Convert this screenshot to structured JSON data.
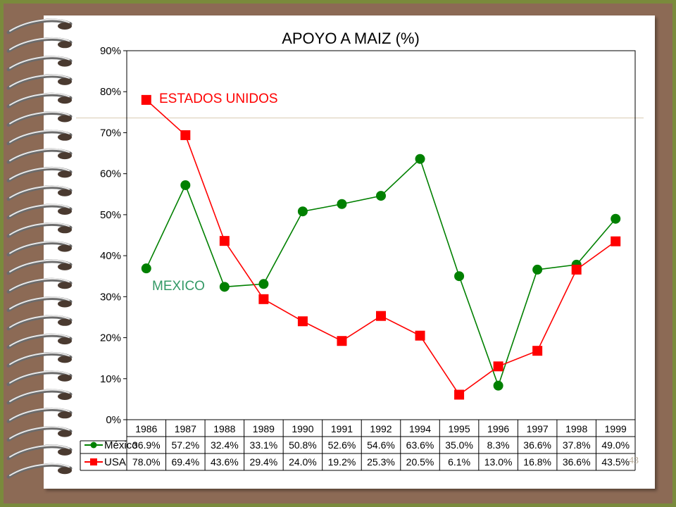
{
  "slide_number": "43",
  "colors": {
    "mexico": "#008000",
    "usa": "#ff0000",
    "mexico_label": "#339966"
  },
  "chart_data": {
    "type": "line",
    "title": "APOYO A MAIZ (%)",
    "categories": [
      "1986",
      "1987",
      "1988",
      "1989",
      "1990",
      "1991",
      "1992",
      "1994",
      "1995",
      "1996",
      "1997",
      "1998",
      "1999"
    ],
    "y_ticks": [
      "0%",
      "10%",
      "20%",
      "30%",
      "40%",
      "50%",
      "60%",
      "70%",
      "80%",
      "90%"
    ],
    "ylim": [
      0,
      90
    ],
    "grid": false,
    "annotations": [
      "ESTADOS UNIDOS",
      "MEXICO"
    ],
    "series": [
      {
        "name": "México",
        "marker": "circle",
        "color": "#008000",
        "values": [
          36.9,
          57.2,
          32.4,
          33.1,
          50.8,
          52.6,
          54.6,
          63.6,
          35.0,
          8.3,
          36.6,
          37.8,
          49.0
        ],
        "labels": [
          "36.9%",
          "57.2%",
          "32.4%",
          "33.1%",
          "50.8%",
          "52.6%",
          "54.6%",
          "63.6%",
          "35.0%",
          "8.3%",
          "36.6%",
          "37.8%",
          "49.0%"
        ]
      },
      {
        "name": "USA",
        "marker": "square",
        "color": "#ff0000",
        "values": [
          78.0,
          69.4,
          43.6,
          29.4,
          24.0,
          19.2,
          25.3,
          20.5,
          6.1,
          13.0,
          16.8,
          36.6,
          43.5
        ],
        "labels": [
          "78.0%",
          "69.4%",
          "43.6%",
          "29.4%",
          "24.0%",
          "19.2%",
          "25.3%",
          "20.5%",
          "6.1%",
          "13.0%",
          "16.8%",
          "36.6%",
          "43.5%"
        ]
      }
    ]
  }
}
